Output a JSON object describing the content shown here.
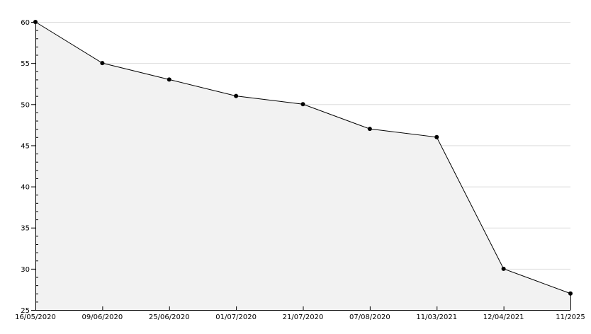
{
  "chart_data": {
    "type": "area",
    "categories": [
      "16/05/2020",
      "09/06/2020",
      "25/06/2020",
      "01/07/2020",
      "21/07/2020",
      "07/08/2020",
      "11/03/2021",
      "12/04/2021",
      "11/2025"
    ],
    "values": [
      60,
      55,
      53,
      51,
      50,
      47,
      46,
      30,
      27
    ],
    "ylim": [
      25,
      60
    ],
    "yticks": [
      25,
      30,
      35,
      40,
      45,
      50,
      55,
      60
    ],
    "y_minor_step": 1,
    "grid": "horizontal",
    "title": "",
    "xlabel": "",
    "ylabel": "",
    "colors": {
      "fill": "#f2f2f2",
      "line": "#000000",
      "grid": "#dddddd",
      "marker": "#000000"
    }
  }
}
